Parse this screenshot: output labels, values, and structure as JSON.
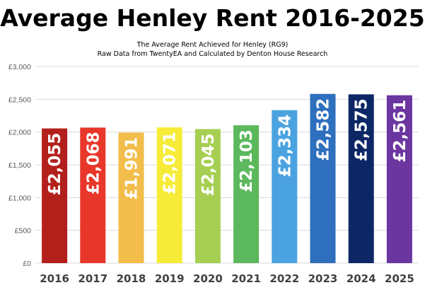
{
  "chart_data": {
    "type": "bar",
    "title": "Average Henley Rent 2016-2025",
    "subtitle_1": "The Average Rent Achieved for Henley (RG9)",
    "subtitle_2": "Raw Data from TwentyEA and Calculated by Denton House Research",
    "categories": [
      "2016",
      "2017",
      "2018",
      "2019",
      "2020",
      "2021",
      "2022",
      "2023",
      "2024",
      "2025"
    ],
    "values": [
      2055,
      2068,
      1991,
      2071,
      2045,
      2103,
      2334,
      2582,
      2575,
      2561
    ],
    "data_labels": [
      "£2,055",
      "£2,068",
      "£1,991",
      "£2,071",
      "£2,045",
      "£2,103",
      "£2,334",
      "£2,582",
      "£2,575",
      "£2,561"
    ],
    "y_ticks": [
      0,
      500,
      1000,
      1500,
      2000,
      2500,
      3000
    ],
    "y_tick_labels": [
      "£0",
      "£500",
      "£1,000",
      "£1,500",
      "£2,000",
      "£2,500",
      "£3,000"
    ],
    "ylim": [
      0,
      3000
    ],
    "xlabel": "",
    "ylabel": "",
    "grid": true,
    "bar_colors": [
      "#b3201c",
      "#e8372a",
      "#f2bd4a",
      "#f6ec38",
      "#a6cf52",
      "#5cb85c",
      "#4aa3e0",
      "#2e6fbe",
      "#0d2766",
      "#6b36a0"
    ],
    "grid_color": "#d9d9d9"
  }
}
